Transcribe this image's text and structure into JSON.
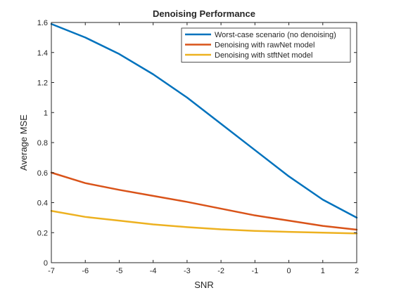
{
  "chart_data": {
    "type": "line",
    "title": "Denoising Performance",
    "xlabel": "SNR",
    "ylabel": "Average MSE",
    "xlim": [
      -7,
      2
    ],
    "ylim": [
      0,
      1.6
    ],
    "xticks": [
      -7,
      -6,
      -5,
      -4,
      -3,
      -2,
      -1,
      0,
      1,
      2
    ],
    "yticks": [
      0,
      0.2,
      0.4,
      0.6,
      0.8,
      1,
      1.2,
      1.4,
      1.6
    ],
    "ytick_labels": [
      "0",
      "0.2",
      "0.4",
      "0.6",
      "0.8",
      "1",
      "1.2",
      "1.4",
      "1.6"
    ],
    "grid": false,
    "box": true,
    "legend_position": "top-right",
    "x": [
      -7,
      -6,
      -5,
      -4,
      -3,
      -2,
      -1,
      0,
      1,
      2
    ],
    "series": [
      {
        "name": "Worst-case scenario (no denoising)",
        "color": "#0072BD",
        "values": [
          1.59,
          1.5,
          1.39,
          1.255,
          1.1,
          0.925,
          0.75,
          0.575,
          0.42,
          0.3
        ]
      },
      {
        "name": "Denoising with rawNet model",
        "color": "#D95319",
        "values": [
          0.6,
          0.53,
          0.485,
          0.445,
          0.405,
          0.36,
          0.315,
          0.28,
          0.245,
          0.22
        ]
      },
      {
        "name": "Denoising with stftNet model",
        "color": "#EDB120",
        "values": [
          0.345,
          0.305,
          0.28,
          0.255,
          0.237,
          0.222,
          0.212,
          0.205,
          0.2,
          0.195
        ]
      }
    ]
  }
}
